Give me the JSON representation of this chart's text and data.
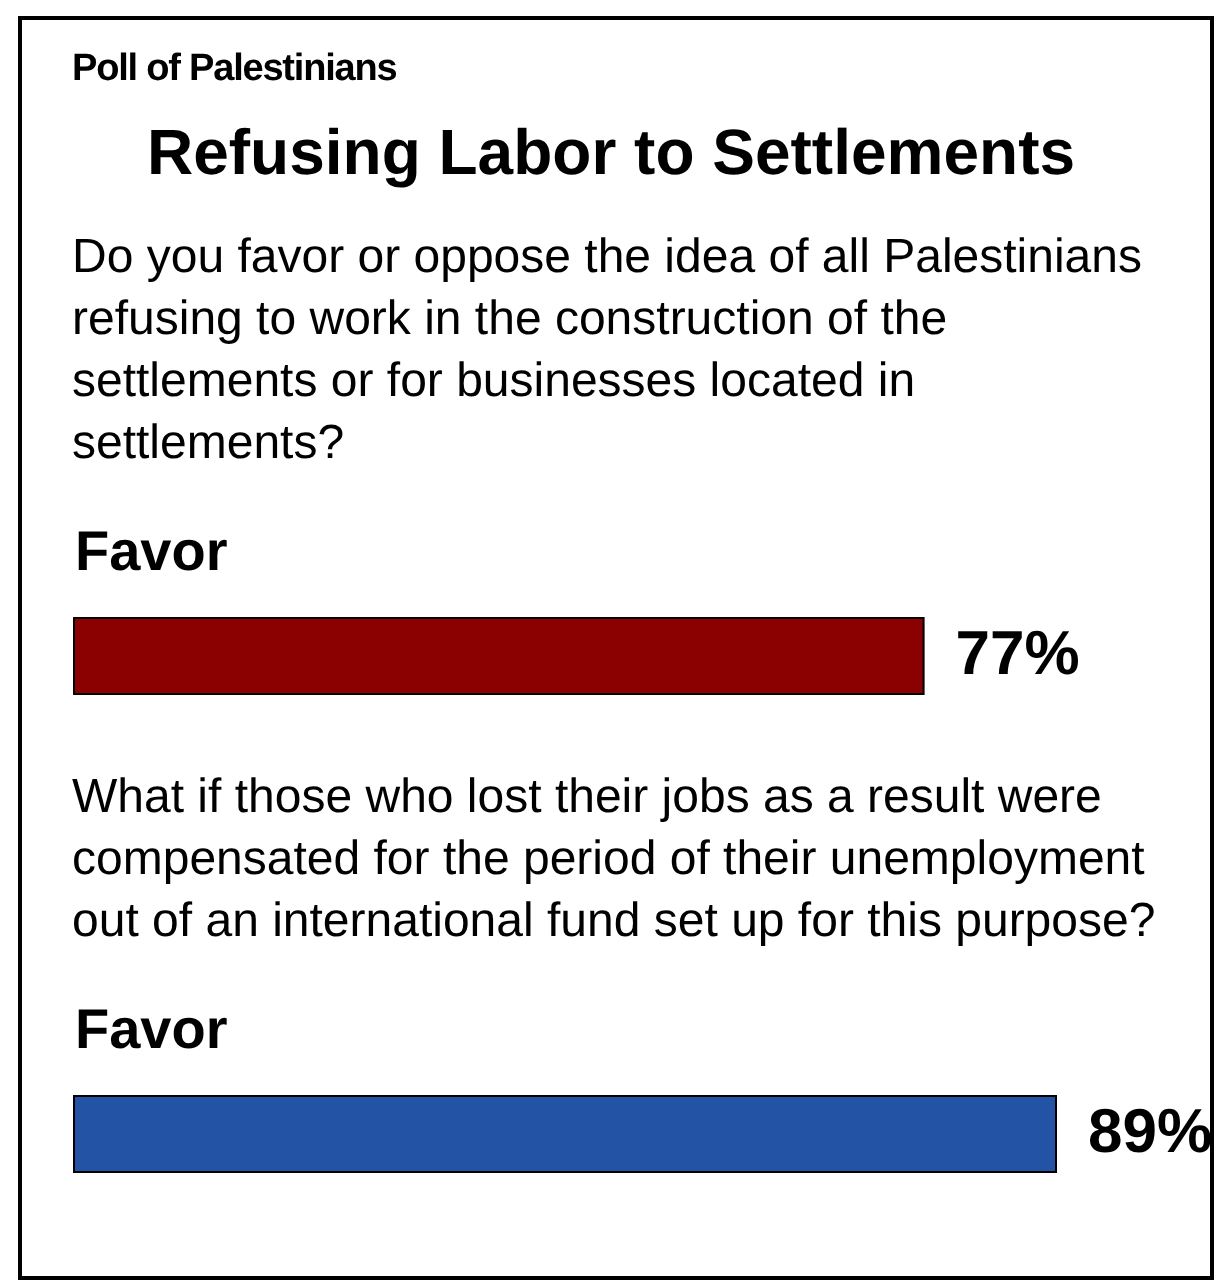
{
  "chart_data": [
    {
      "type": "bar",
      "orientation": "horizontal",
      "annotations": [
        "Poll of Palestinians"
      ],
      "title": "Refusing Labor to Settlements",
      "subtitle": "Do you favor or oppose the idea of all Palestinians refusing to work in the construction of the settlements or for businesses located in settlements?",
      "categories": [
        "Favor"
      ],
      "values": [
        77
      ],
      "value_labels": [
        "77%"
      ],
      "color": "#8b0000"
    },
    {
      "type": "bar",
      "orientation": "horizontal",
      "subtitle": "What if those who lost their jobs as a result were compensated for the period of their unemployment out of an international fund set up for this purpose?",
      "categories": [
        "Favor"
      ],
      "values": [
        89
      ],
      "value_labels": [
        "89%"
      ],
      "color": "#2253a4"
    }
  ]
}
